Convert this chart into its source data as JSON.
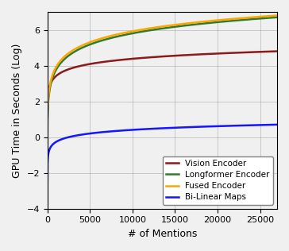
{
  "title": "",
  "xlabel": "# of Mentions",
  "ylabel": "GPU Time in Seconds (Log)",
  "xlim": [
    0,
    27000
  ],
  "ylim": [
    -4,
    7
  ],
  "yticks": [
    -4,
    -2,
    0,
    2,
    4,
    6
  ],
  "xticks": [
    0,
    5000,
    10000,
    15000,
    20000,
    25000
  ],
  "xticklabels": [
    "0",
    "5000",
    "10000",
    "15000",
    "20000",
    "25000"
  ],
  "grid": true,
  "legend_vision": {
    "color": "#8B1A1A",
    "linewidth": 1.8,
    "label": "Vision Encoder"
  },
  "legend_longformer": {
    "color": "#2E7D2E",
    "linewidth": 1.8,
    "label": "Longformer Encoder"
  },
  "legend_fused": {
    "color": "#FFA500",
    "linewidth": 1.8,
    "label": "Fused Encoder"
  },
  "legend_bilinear": {
    "color": "#1515FF",
    "linewidth": 1.8,
    "label": "Bi-Linear Maps"
  },
  "figsize": [
    3.64,
    3.16
  ],
  "dpi": 100,
  "bg_color": "#f0f0f0"
}
